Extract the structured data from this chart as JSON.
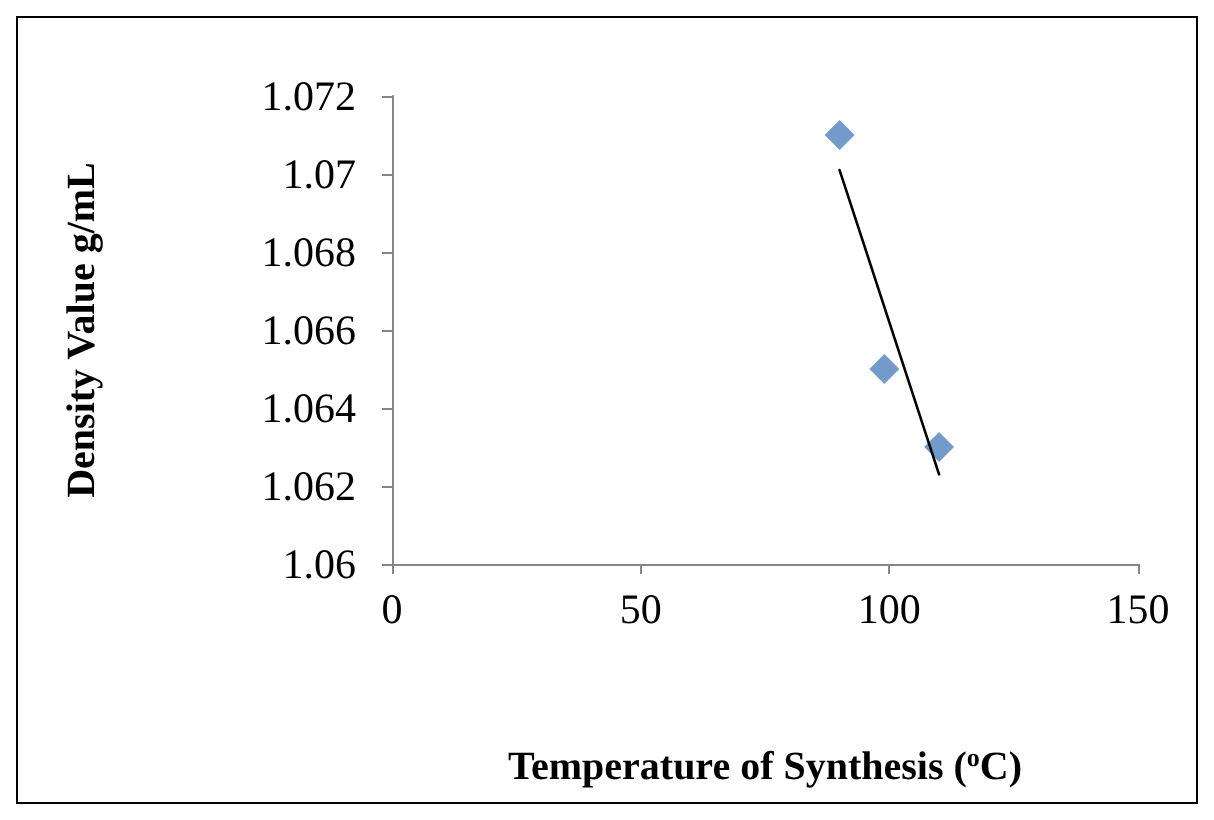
{
  "chart_data": {
    "type": "scatter",
    "xlabel": "Temperature of Synthesis ($^{o}$C)",
    "ylabel": "Density Value g/mL",
    "xlim": [
      0,
      150
    ],
    "xticks": [
      0,
      50,
      100,
      150
    ],
    "ylim": [
      1.06,
      1.072
    ],
    "yticks": [
      1.06,
      1.062,
      1.064,
      1.066,
      1.068,
      1.07,
      1.072
    ],
    "grid": false,
    "series": [
      {
        "color": "#4f81bd",
        "marker": "diamond",
        "x": [
          90,
          99,
          110
        ],
        "values": [
          1.071,
          1.065,
          1.063
        ]
      },
      {
        "type": "line",
        "color": "#000000",
        "marker": "none",
        "line_style": "solid",
        "x": [
          90,
          110
        ],
        "values": [
          1.0701,
          1.0623
        ]
      }
    ]
  }
}
